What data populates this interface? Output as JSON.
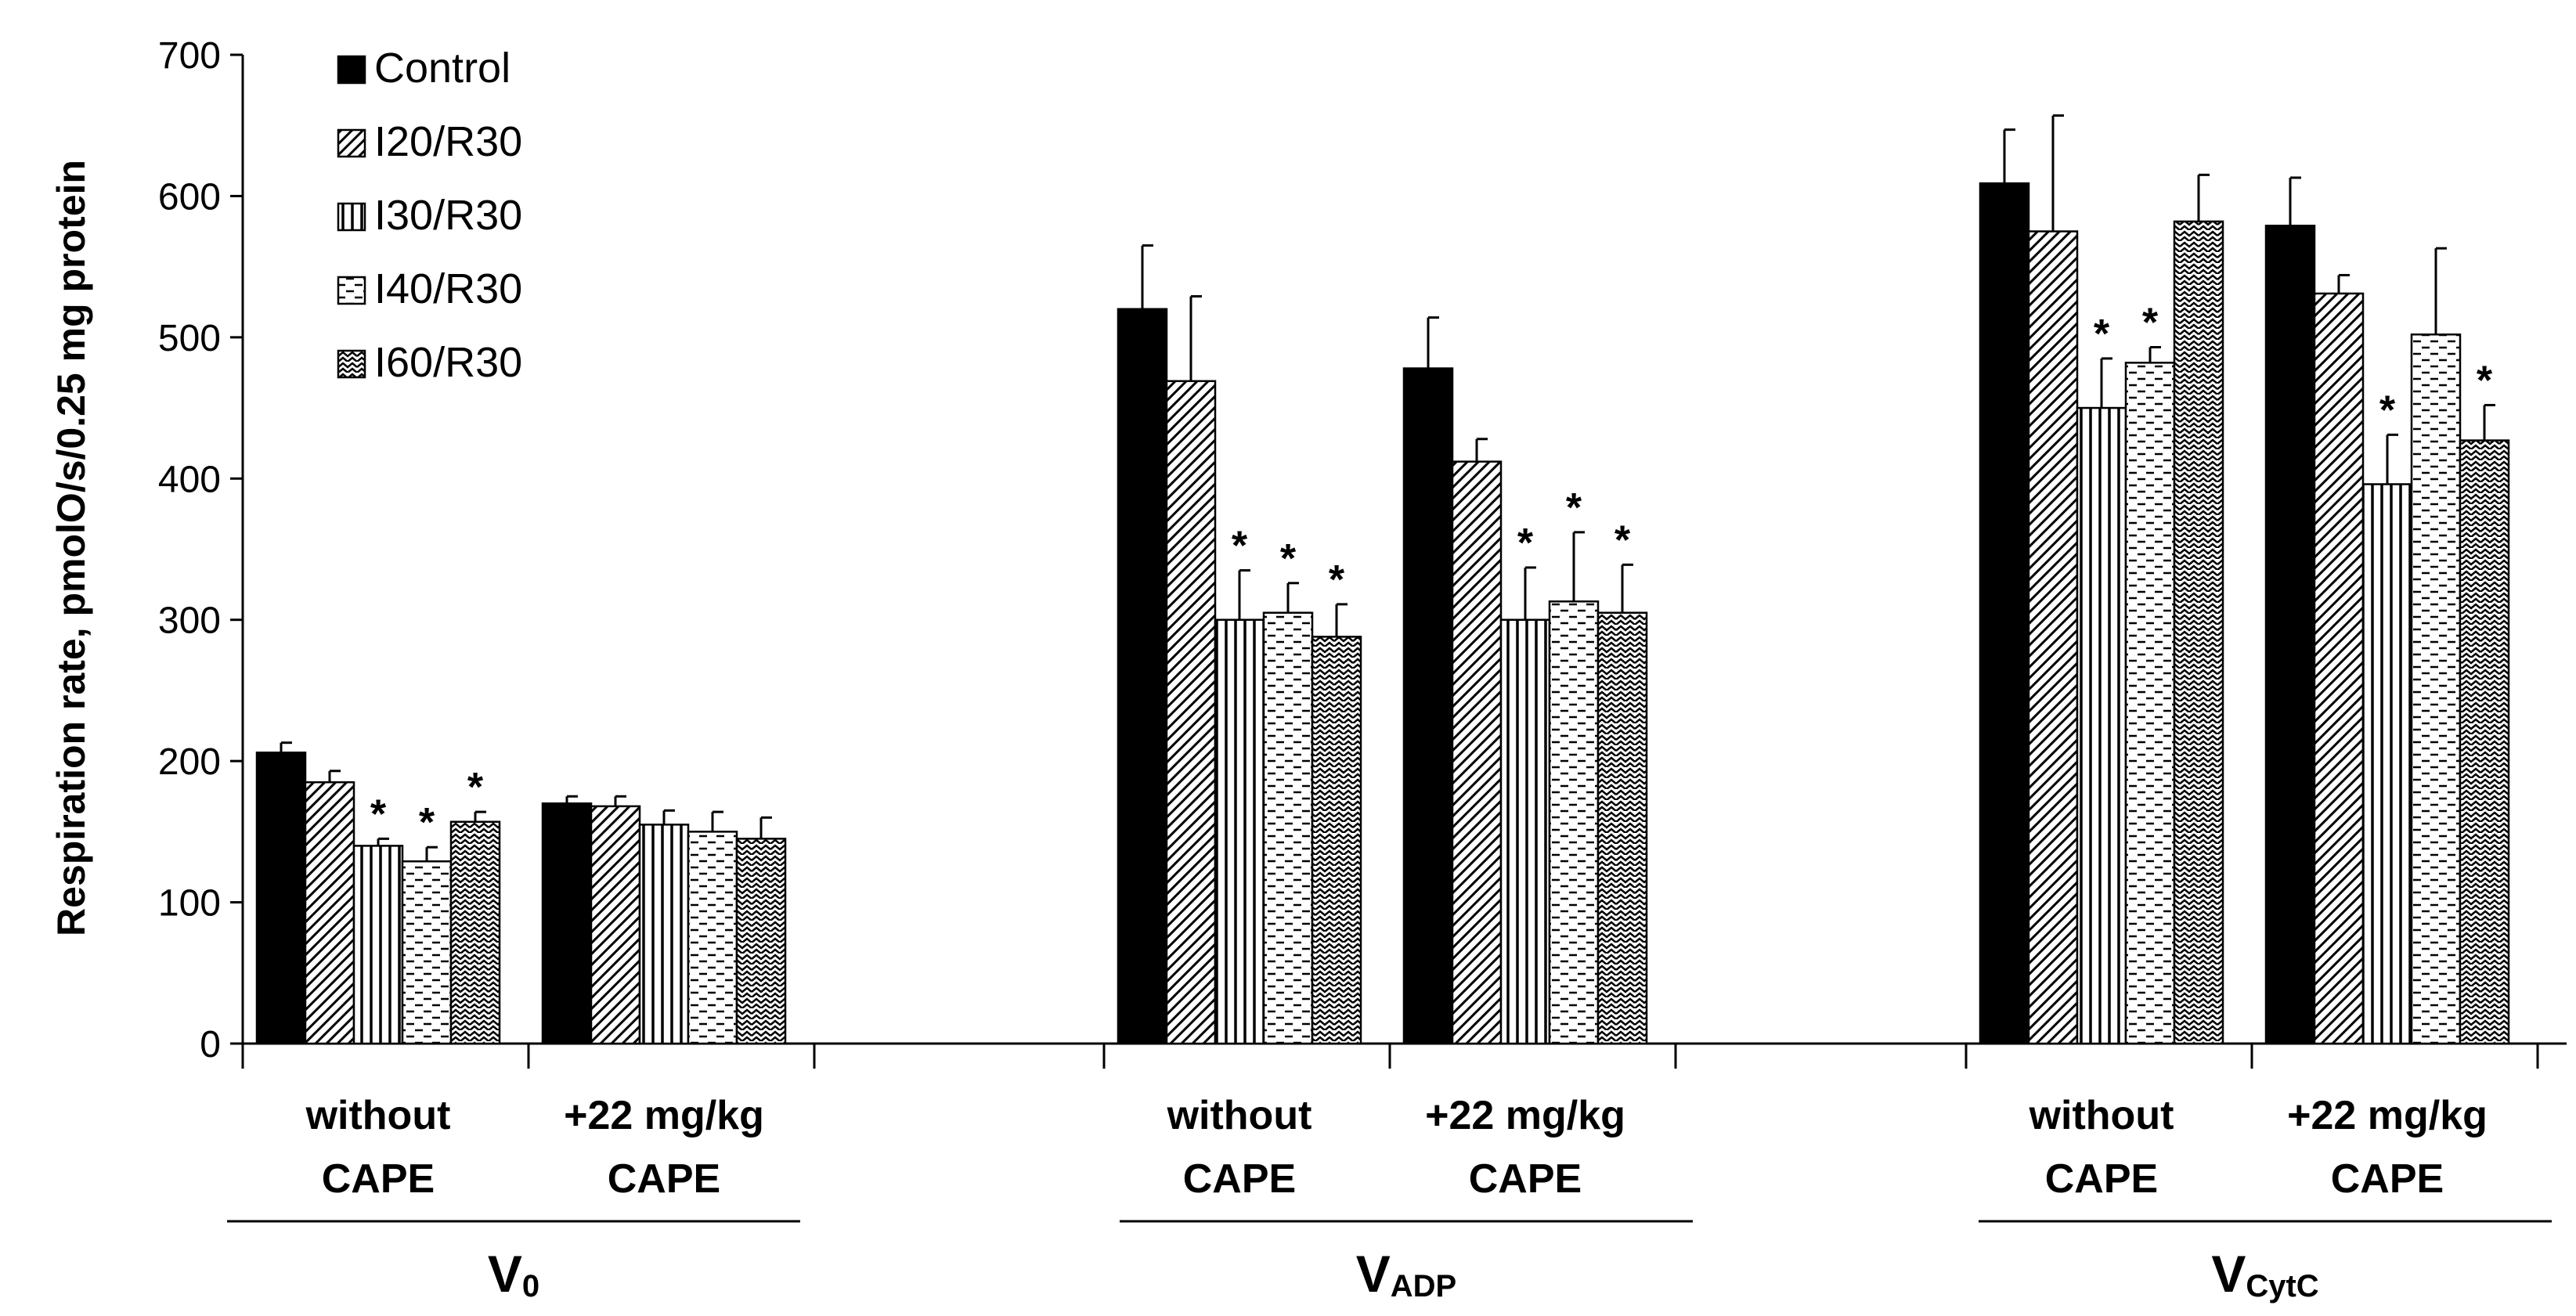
{
  "chart_data": {
    "type": "bar",
    "title": "",
    "ylabel": "Respiration rate, pmolO/s/0.25 mg protein",
    "xlabel": "",
    "ylim": [
      0,
      700
    ],
    "yticks": [
      0,
      100,
      200,
      300,
      400,
      500,
      600,
      700
    ],
    "series": [
      {
        "name": "Control",
        "pattern": "solid"
      },
      {
        "name": "I20/R30",
        "pattern": "diag"
      },
      {
        "name": "I30/R30",
        "pattern": "vert"
      },
      {
        "name": "I40/R30",
        "pattern": "dash"
      },
      {
        "name": "I60/R30",
        "pattern": "wave"
      }
    ],
    "groups": [
      {
        "label": "V",
        "sub": "0",
        "clusters": [
          {
            "line1": "without",
            "line2": "CAPE",
            "values": [
              206,
              185,
              140,
              129,
              157
            ],
            "errors": [
              7,
              8,
              5,
              10,
              7
            ],
            "sig": [
              false,
              false,
              true,
              true,
              true
            ]
          },
          {
            "line1": "+22 mg/kg",
            "line2": "CAPE",
            "values": [
              170,
              168,
              155,
              150,
              145
            ],
            "errors": [
              5,
              7,
              10,
              14,
              15
            ],
            "sig": [
              false,
              false,
              false,
              false,
              false
            ]
          }
        ]
      },
      {
        "label": "V",
        "sub": "ADP",
        "clusters": [
          {
            "line1": "without",
            "line2": "CAPE",
            "values": [
              520,
              469,
              300,
              305,
              288
            ],
            "errors": [
              45,
              60,
              35,
              21,
              23
            ],
            "sig": [
              false,
              false,
              true,
              true,
              true
            ]
          },
          {
            "line1": "+22 mg/kg",
            "line2": "CAPE",
            "values": [
              478,
              412,
              300,
              313,
              305
            ],
            "errors": [
              36,
              16,
              37,
              49,
              34
            ],
            "sig": [
              false,
              false,
              true,
              true,
              true
            ]
          }
        ]
      },
      {
        "label": "V",
        "sub": "CytC",
        "clusters": [
          {
            "line1": "without",
            "line2": "CAPE",
            "values": [
              609,
              575,
              450,
              482,
              582
            ],
            "errors": [
              38,
              82,
              35,
              11,
              33
            ],
            "sig": [
              false,
              false,
              true,
              true,
              false
            ]
          },
          {
            "line1": "+22 mg/kg",
            "line2": "CAPE",
            "values": [
              579,
              531,
              396,
              502,
              427
            ],
            "errors": [
              34,
              13,
              35,
              61,
              25
            ],
            "sig": [
              false,
              false,
              true,
              false,
              true
            ]
          }
        ]
      }
    ],
    "significance_marker": "*",
    "legend_position": "top-left"
  }
}
